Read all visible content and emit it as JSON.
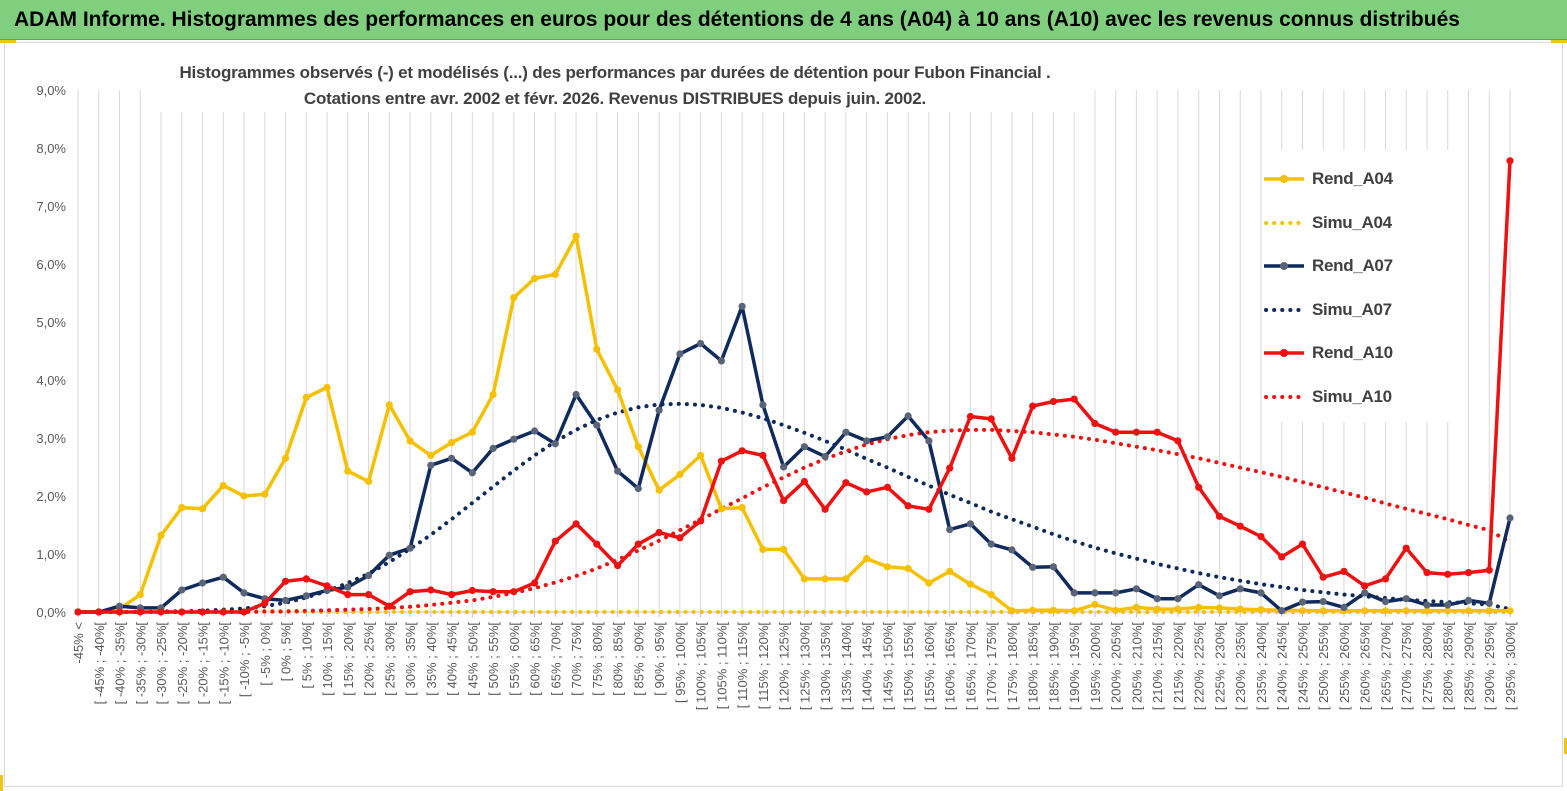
{
  "header": {
    "title": "ADAM Informe. Histogrammes des performances en euros pour des détentions de 4 ans (A04) à 10 ans (A10) avec les revenus connus distribués"
  },
  "chart_data": {
    "type": "line",
    "title_line1": "Histogrammes observés (-)  et modélisés (...) des performances par durées de détention pour Fubon Financial .",
    "title_line2": "Cotations entre avr. 2002 et févr. 2026. Revenus DISTRIBUES depuis juin. 2002.",
    "ylim": [
      0,
      9
    ],
    "yticks": [
      "0,0%",
      "1,0%",
      "2,0%",
      "3,0%",
      "4,0%",
      "5,0%",
      "6,0%",
      "7,0%",
      "8,0%",
      "9,0%"
    ],
    "legend_position": "right",
    "categories": [
      "-45% <",
      "[ -45% ; -40%[",
      "[ -40% ; -35%[",
      "[ -35% ; -30%[",
      "[ -30% ; -25%[",
      "[ -25% ; -20%[",
      "[ -20% ; -15%[",
      "[ -15% ; -10%[",
      "[ -10% ; -5%[",
      "[ -5% ; 0%[",
      "[ 0% ; 5%[",
      "[ 5% ; 10%[",
      "[ 10% ; 15%[",
      "[ 15% ; 20%[",
      "[ 20% ; 25%[",
      "[ 25% ; 30%[",
      "[ 30% ; 35%[",
      "[ 35% ; 40%[",
      "[ 40% ; 45%[",
      "[ 45% ; 50%[",
      "[ 50% ; 55%[",
      "[ 55% ; 60%[",
      "[ 60% ; 65%[",
      "[ 65% ; 70%[",
      "[ 70% ; 75%[",
      "[ 75% ; 80%[",
      "[ 80% ; 85%[",
      "[ 85% ; 90%[",
      "[ 90% ; 95%[",
      "[ 95% ; 100%[",
      "[ 100% ; 105%[",
      "[ 105% ; 110%[",
      "[ 110% ; 115%[",
      "[ 115% ; 120%[",
      "[ 120% ; 125%[",
      "[ 125% ; 130%[",
      "[ 130% ; 135%[",
      "[ 135% ; 140%[",
      "[ 140% ; 145%[",
      "[ 145% ; 150%[",
      "[ 150% ; 155%[",
      "[ 155% ; 160%[",
      "[ 160% ; 165%[",
      "[ 165% ; 170%[",
      "[ 170% ; 175%[",
      "[ 175% ; 180%[",
      "[ 180% ; 185%[",
      "[ 185% ; 190%[",
      "[ 190% ; 195%[",
      "[ 195% ; 200%[",
      "[ 200% ; 205%[",
      "[ 205% ; 210%[",
      "[ 210% ; 215%[",
      "[ 215% ; 220%[",
      "[ 220% ; 225%[",
      "[ 225% ; 230%[",
      "[ 230% ; 235%[",
      "[ 235% ; 240%[",
      "[ 240% ; 245%[",
      "[ 245% ; 250%[",
      "[ 250% ; 255%[",
      "[ 255% ; 260%[",
      "[ 260% ; 265%[",
      "[ 265% ; 270%[",
      "[ 270% ; 275%[",
      "[ 275% ; 280%[",
      "[ 280% ; 285%[",
      "[ 285% ; 290%[",
      "[ 290% ; 295%[",
      "[ 295% ; 300%["
    ],
    "series": [
      {
        "name": "Rend_A04",
        "color": "#f5c000",
        "style": "solid",
        "values": [
          0,
          0,
          0.05,
          0.3,
          1.32,
          1.8,
          1.78,
          2.18,
          2.0,
          2.03,
          2.65,
          3.7,
          3.87,
          2.43,
          2.25,
          3.57,
          2.95,
          2.7,
          2.92,
          3.1,
          3.75,
          5.42,
          5.75,
          5.82,
          6.48,
          4.53,
          3.83,
          2.85,
          2.1,
          2.37,
          2.7,
          1.78,
          1.8,
          1.08,
          1.08,
          0.57,
          0.57,
          0.57,
          0.92,
          0.78,
          0.75,
          0.5,
          0.7,
          0.48,
          0.3,
          0.02,
          0.03,
          0.03,
          0.02,
          0.13,
          0.03,
          0.08,
          0.05,
          0.05,
          0.08,
          0.07,
          0.05,
          0.04,
          0.03,
          0.02,
          0.02,
          0.02,
          0.02,
          0.02,
          0.02,
          0.02,
          0.02,
          0.02,
          0.02,
          0.02
        ]
      },
      {
        "name": "Simu_A04",
        "color": "#f5c000",
        "style": "dotted",
        "values": [
          0,
          0,
          0,
          0,
          0,
          0,
          0,
          0,
          0,
          0,
          0,
          0,
          0,
          0,
          0,
          0,
          0,
          0,
          0,
          0,
          0,
          0,
          0,
          0,
          0,
          0,
          0,
          0,
          0,
          0,
          0,
          0,
          0,
          0,
          0,
          0,
          0,
          0,
          0,
          0,
          0,
          0,
          0,
          0,
          0,
          0,
          0,
          0,
          0,
          0,
          0,
          0,
          0,
          0,
          0,
          0,
          0,
          0,
          0,
          0,
          0,
          0,
          0,
          0,
          0,
          0,
          0,
          0,
          0,
          0
        ]
      },
      {
        "name": "Rend_A07",
        "color": "#0f2a5c",
        "style": "solid",
        "values": [
          0,
          0,
          0.1,
          0.07,
          0.07,
          0.38,
          0.5,
          0.6,
          0.33,
          0.23,
          0.2,
          0.28,
          0.37,
          0.43,
          0.63,
          0.98,
          1.1,
          2.53,
          2.65,
          2.4,
          2.82,
          2.98,
          3.12,
          2.9,
          3.75,
          3.22,
          2.43,
          2.13,
          3.48,
          4.45,
          4.63,
          4.33,
          5.27,
          3.57,
          2.5,
          2.85,
          2.68,
          3.1,
          2.95,
          3.02,
          3.38,
          2.95,
          1.42,
          1.52,
          1.17,
          1.07,
          0.77,
          0.78,
          0.33,
          0.33,
          0.33,
          0.4,
          0.23,
          0.23,
          0.47,
          0.28,
          0.4,
          0.33,
          0.02,
          0.17,
          0.18,
          0.08,
          0.33,
          0.18,
          0.23,
          0.12,
          0.12,
          0.2,
          0.15,
          1.62
        ]
      },
      {
        "name": "Simu_A07",
        "color": "#0f2a5c",
        "style": "dotted",
        "values": [
          0,
          0,
          0,
          0,
          0.01,
          0.01,
          0.02,
          0.04,
          0.06,
          0.1,
          0.16,
          0.25,
          0.36,
          0.5,
          0.66,
          0.86,
          1.09,
          1.33,
          1.6,
          1.88,
          2.16,
          2.44,
          2.7,
          2.94,
          3.14,
          3.31,
          3.44,
          3.53,
          3.58,
          3.59,
          3.57,
          3.52,
          3.44,
          3.34,
          3.22,
          3.09,
          2.95,
          2.8,
          2.64,
          2.49,
          2.33,
          2.18,
          2.02,
          1.88,
          1.73,
          1.6,
          1.47,
          1.34,
          1.22,
          1.11,
          1.01,
          0.92,
          0.83,
          0.75,
          0.67,
          0.6,
          0.54,
          0.48,
          0.43,
          0.38,
          0.34,
          0.3,
          0.27,
          0.24,
          0.21,
          0.19,
          0.17,
          0.15,
          0.13,
          0.05
        ]
      },
      {
        "name": "Rend_A10",
        "color": "#ee1111",
        "style": "solid",
        "values": [
          0,
          0,
          0,
          0,
          0,
          0,
          0,
          0,
          0,
          0.15,
          0.53,
          0.57,
          0.45,
          0.3,
          0.3,
          0.1,
          0.35,
          0.38,
          0.3,
          0.37,
          0.35,
          0.35,
          0.5,
          1.22,
          1.52,
          1.17,
          0.8,
          1.17,
          1.37,
          1.28,
          1.57,
          2.6,
          2.78,
          2.7,
          1.92,
          2.25,
          1.77,
          2.23,
          2.07,
          2.15,
          1.83,
          1.77,
          2.48,
          3.37,
          3.33,
          2.65,
          3.55,
          3.63,
          3.67,
          3.25,
          3.1,
          3.1,
          3.1,
          2.95,
          2.15,
          1.65,
          1.48,
          1.3,
          0.95,
          1.17,
          0.6,
          0.7,
          0.45,
          0.57,
          1.1,
          0.68,
          0.65,
          0.68,
          0.72,
          7.78
        ]
      },
      {
        "name": "Simu_A10",
        "color": "#ee1111",
        "style": "dotted",
        "values": [
          0,
          0,
          0,
          0,
          0,
          0,
          0,
          0,
          0,
          0.01,
          0.01,
          0.02,
          0.03,
          0.04,
          0.05,
          0.07,
          0.09,
          0.12,
          0.16,
          0.2,
          0.26,
          0.33,
          0.41,
          0.51,
          0.62,
          0.75,
          0.9,
          1.06,
          1.23,
          1.41,
          1.59,
          1.78,
          1.96,
          2.15,
          2.32,
          2.49,
          2.64,
          2.77,
          2.89,
          2.98,
          3.05,
          3.1,
          3.13,
          3.14,
          3.14,
          3.12,
          3.1,
          3.06,
          3.02,
          2.97,
          2.91,
          2.85,
          2.79,
          2.72,
          2.65,
          2.57,
          2.49,
          2.41,
          2.33,
          2.24,
          2.15,
          2.06,
          1.97,
          1.87,
          1.78,
          1.69,
          1.6,
          1.5,
          1.41,
          1.2
        ]
      }
    ]
  }
}
